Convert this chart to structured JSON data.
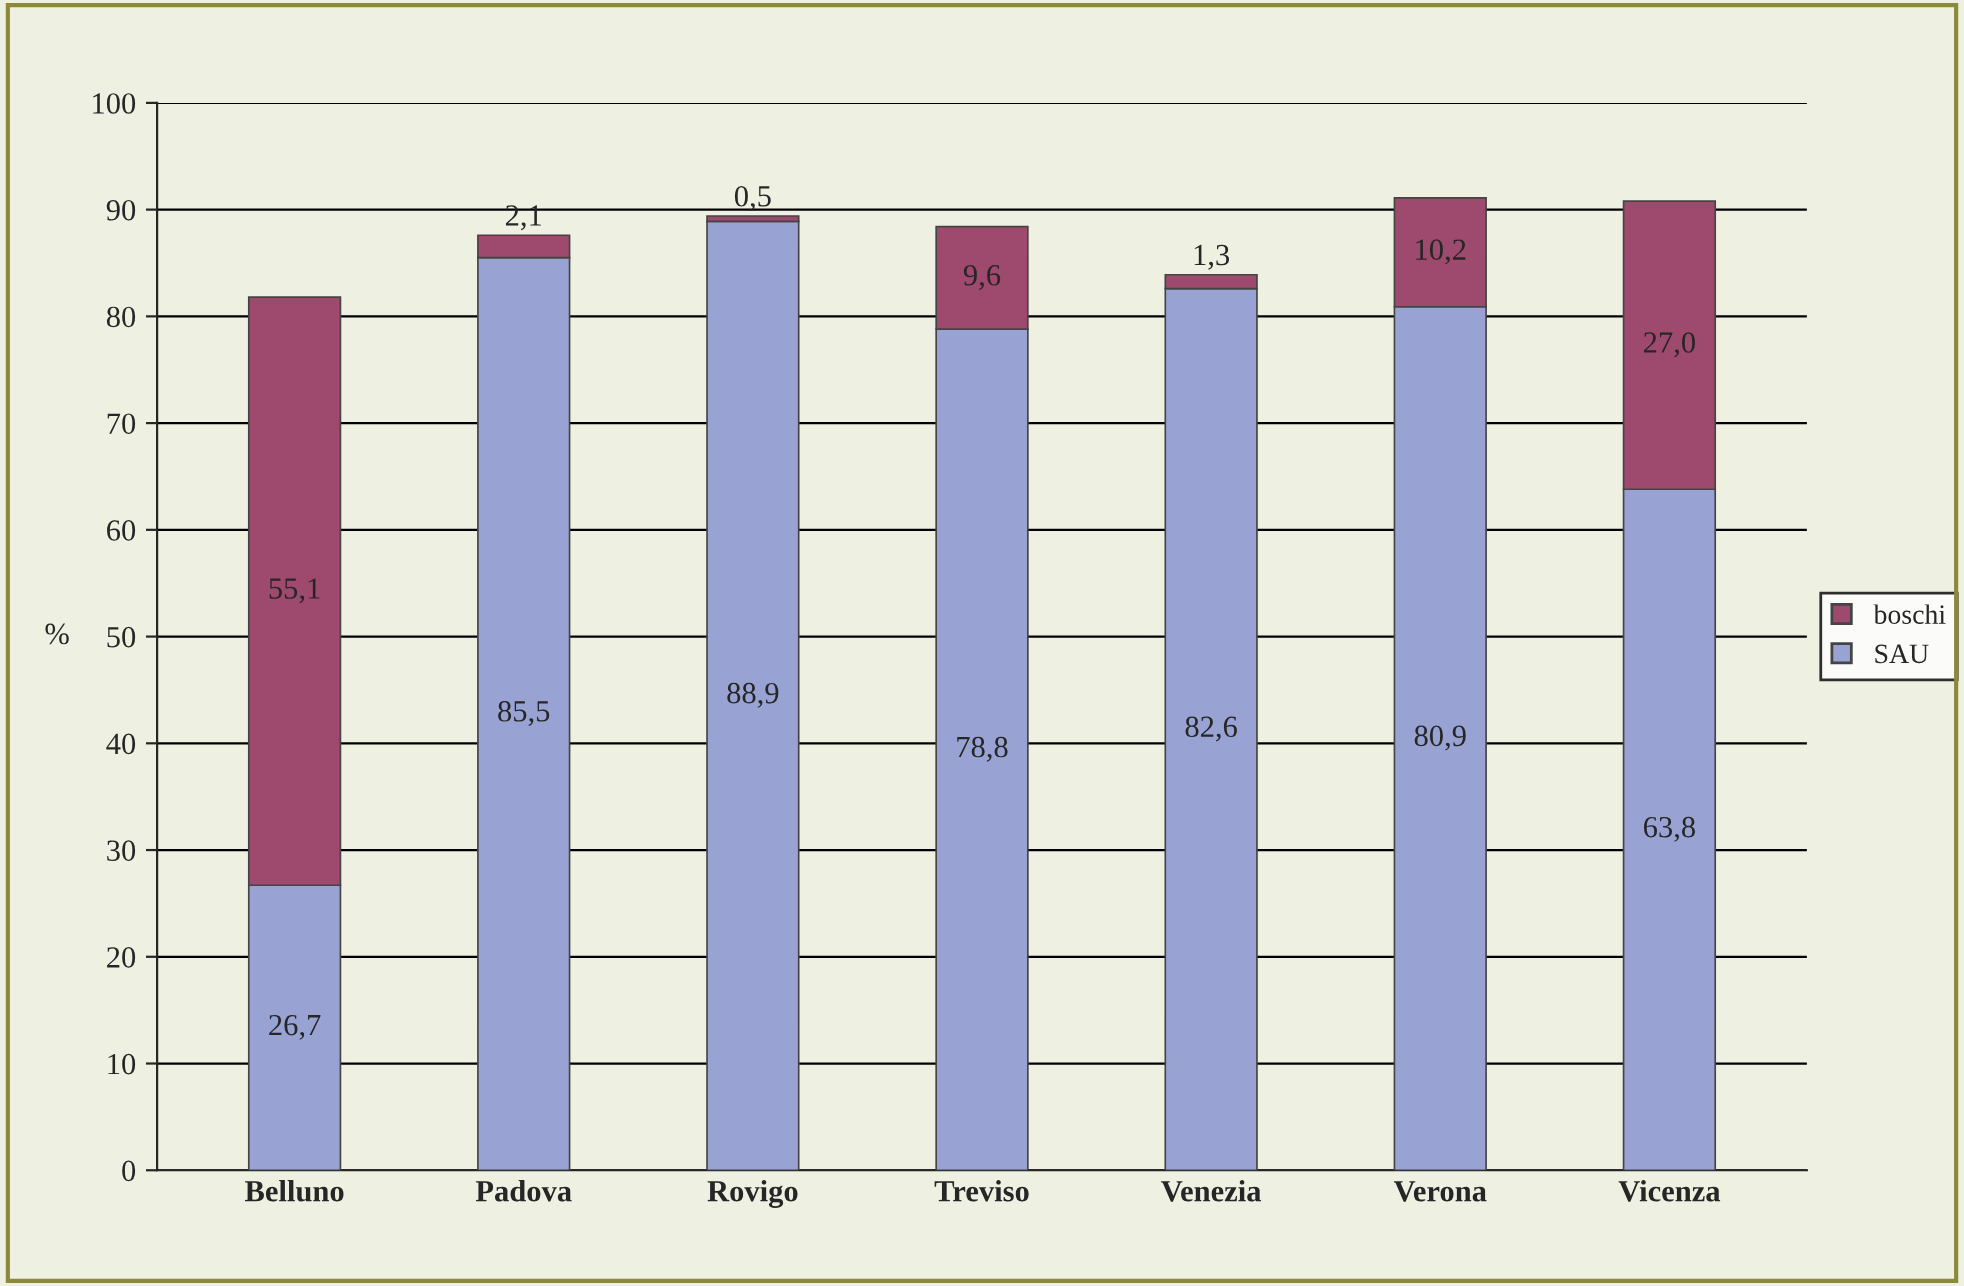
{
  "chart_data": {
    "type": "bar",
    "stacked": true,
    "ylabel": "%",
    "categories": [
      "Belluno",
      "Padova",
      "Rovigo",
      "Treviso",
      "Venezia",
      "Verona",
      "Vicenza"
    ],
    "series": [
      {
        "name": "SAU",
        "color": "#99a3d3",
        "values": [
          26.7,
          85.5,
          88.9,
          78.8,
          82.6,
          80.9,
          63.8
        ],
        "value_labels": [
          "26,7",
          "85,5",
          "88,9",
          "78,8",
          "82,6",
          "80,9",
          "63,8"
        ]
      },
      {
        "name": "boschi",
        "color": "#9e4a6e",
        "values": [
          55.1,
          2.1,
          0.5,
          9.6,
          1.3,
          10.2,
          27.0
        ],
        "value_labels": [
          "55,1",
          "2,1",
          "0,5",
          "9,6",
          "1,3",
          "10,2",
          "27,0"
        ]
      }
    ],
    "ylim": [
      0,
      100
    ],
    "yticks": [
      0,
      10,
      20,
      30,
      40,
      50,
      60,
      70,
      80,
      90,
      100
    ],
    "grid": "y",
    "legend": "right"
  }
}
